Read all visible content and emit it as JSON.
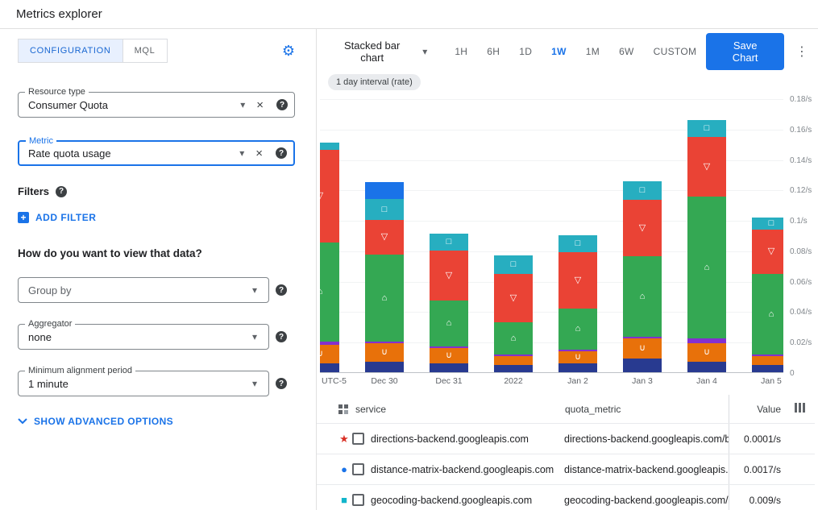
{
  "header": {
    "title": "Metrics explorer"
  },
  "tabs": {
    "configuration": "CONFIGURATION",
    "mql": "MQL"
  },
  "config": {
    "resource_type": {
      "label": "Resource type",
      "value": "Consumer Quota"
    },
    "metric": {
      "label": "Metric",
      "value": "Rate quota usage"
    },
    "filters_heading": "Filters",
    "add_filter": "ADD FILTER",
    "view_heading": "How do you want to view that data?",
    "group_by": {
      "placeholder": "Group by"
    },
    "aggregator": {
      "label": "Aggregator",
      "value": "none"
    },
    "alignment": {
      "label": "Minimum alignment period",
      "value": "1 minute"
    },
    "advanced_toggle": "SHOW ADVANCED OPTIONS"
  },
  "toolbar": {
    "chart_type_label": "Stacked bar chart",
    "ranges": [
      "1H",
      "6H",
      "1D",
      "1W",
      "1M",
      "6W",
      "CUSTOM"
    ],
    "active_range": "1W",
    "save_button": "Save Chart"
  },
  "icons": {
    "gear": "⚙",
    "more": "⋮",
    "dropdown": "▾",
    "clear": "×",
    "help": "?",
    "plus": "+"
  },
  "chart": {
    "interval_chip": "1 day interval (rate)",
    "utc_label": "UTC-5",
    "y_ticks": [
      "0.18/s",
      "0.16/s",
      "0.14/s",
      "0.12/s",
      "0.1/s",
      "0.08/s",
      "0.06/s",
      "0.04/s",
      "0.02/s",
      "0"
    ],
    "x_labels": [
      "Dec 30",
      "Dec 31",
      "2022",
      "Jan 2",
      "Jan 3",
      "Jan 4",
      "Jan 5"
    ]
  },
  "chart_data": {
    "type": "bar",
    "stacked": true,
    "unit": "/s",
    "ylim": [
      0,
      0.18
    ],
    "legend_position": "table-below",
    "grid": true,
    "categories": [
      "",
      "Dec 30",
      "Dec 31",
      "2022",
      "Jan 2",
      "Jan 3",
      "Jan 4",
      "Jan 5"
    ],
    "series": [
      {
        "name": "navy",
        "color": "#283a90",
        "marker": "",
        "values": [
          0.006,
          0.007,
          0.006,
          0.005,
          0.006,
          0.009,
          0.007,
          0.005
        ]
      },
      {
        "name": "orange",
        "color": "#e8710a",
        "marker": "∪",
        "values": [
          0.012,
          0.012,
          0.01,
          0.006,
          0.008,
          0.013,
          0.012,
          0.006
        ]
      },
      {
        "name": "purple",
        "color": "#8430ce",
        "marker": "",
        "values": [
          0.002,
          0.001,
          0.001,
          0.001,
          0.001,
          0.001,
          0.003,
          0.001
        ]
      },
      {
        "name": "green",
        "color": "#34a853",
        "marker": "⌂",
        "values": [
          0.065,
          0.057,
          0.03,
          0.021,
          0.027,
          0.053,
          0.093,
          0.053
        ]
      },
      {
        "name": "red",
        "color": "#ea4335",
        "marker": "▽",
        "values": [
          0.061,
          0.023,
          0.033,
          0.032,
          0.037,
          0.037,
          0.039,
          0.029
        ]
      },
      {
        "name": "teal",
        "color": "#27aec0",
        "marker": "□",
        "values": [
          0.005,
          0.014,
          0.011,
          0.012,
          0.011,
          0.012,
          0.011,
          0.008
        ]
      },
      {
        "name": "blue",
        "color": "#1a73e8",
        "marker": "",
        "values": [
          0,
          0.011,
          0,
          0,
          0,
          0,
          0,
          0
        ]
      }
    ]
  },
  "table": {
    "service_header": "service",
    "quota_header": "quota_metric",
    "value_header": "Value",
    "rows": [
      {
        "marker": "star",
        "marker_color": "#d93025",
        "service": "directions-backend.googleapis.com",
        "quota_metric": "directions-backend.googleapis.com/billabl",
        "value": "0.0001/s"
      },
      {
        "marker": "circle",
        "marker_color": "#1a73e8",
        "service": "distance-matrix-backend.googleapis.com",
        "quota_metric": "distance-matrix-backend.googleapis.com/l",
        "value": "0.0017/s"
      },
      {
        "marker": "square",
        "marker_color": "#12b5cb",
        "service": "geocoding-backend.googleapis.com",
        "quota_metric": "geocoding-backend.googleapis.com/billab",
        "value": "0.009/s"
      }
    ]
  },
  "colors": {
    "accent": "#1a73e8",
    "tab_active_bg": "#e8f0fe",
    "border": "#dadce0"
  }
}
